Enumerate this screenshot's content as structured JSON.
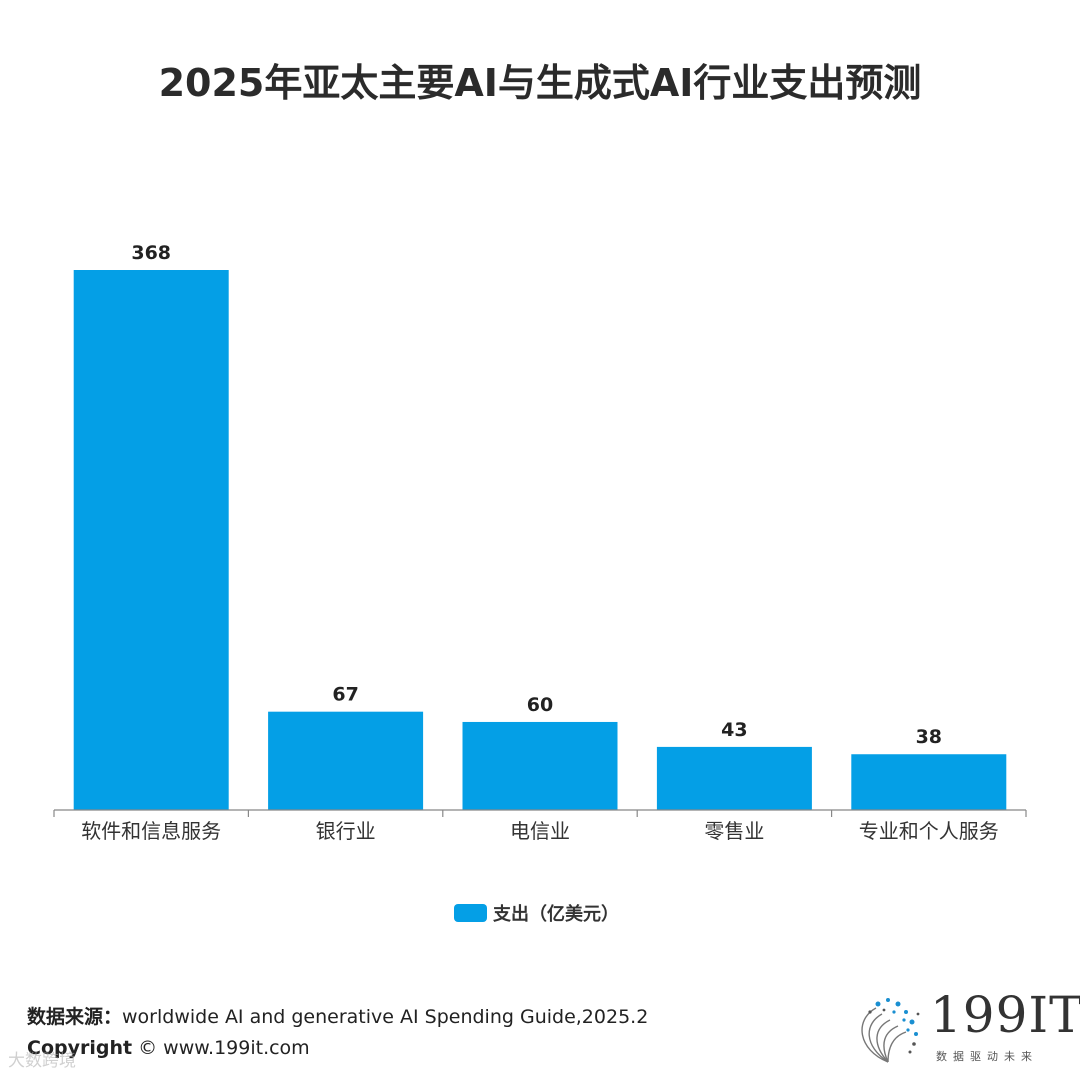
{
  "title": "2025年亚太主要AI与生成式AI行业支出预测",
  "colors": {
    "bar": "#049fe6",
    "axis": "#888888",
    "text": "#222222"
  },
  "chart_data": {
    "type": "bar",
    "title": "2025年亚太主要AI与生成式AI行业支出预测",
    "categories": [
      "软件和信息服务",
      "银行业",
      "电信业",
      "零售业",
      "专业和个人服务"
    ],
    "series": [
      {
        "name": "支出（亿美元）",
        "values": [
          368,
          67,
          60,
          43,
          38
        ]
      }
    ],
    "ylim": [
      0,
      368
    ],
    "grid": false,
    "legend": "bottom-center"
  },
  "legend": {
    "label": "支出（亿美元）"
  },
  "footer": {
    "source_label": "数据来源：",
    "source_text": "worldwide AI and generative AI Spending Guide,2025.2",
    "copyright_label": "Copyright",
    "copyright_text": "© www.199it.com",
    "watermark": "大数跨境"
  },
  "logo": {
    "name": "199IT",
    "tagline": "数据驱动未来",
    "icon": "dot-swirl-logo-icon"
  }
}
